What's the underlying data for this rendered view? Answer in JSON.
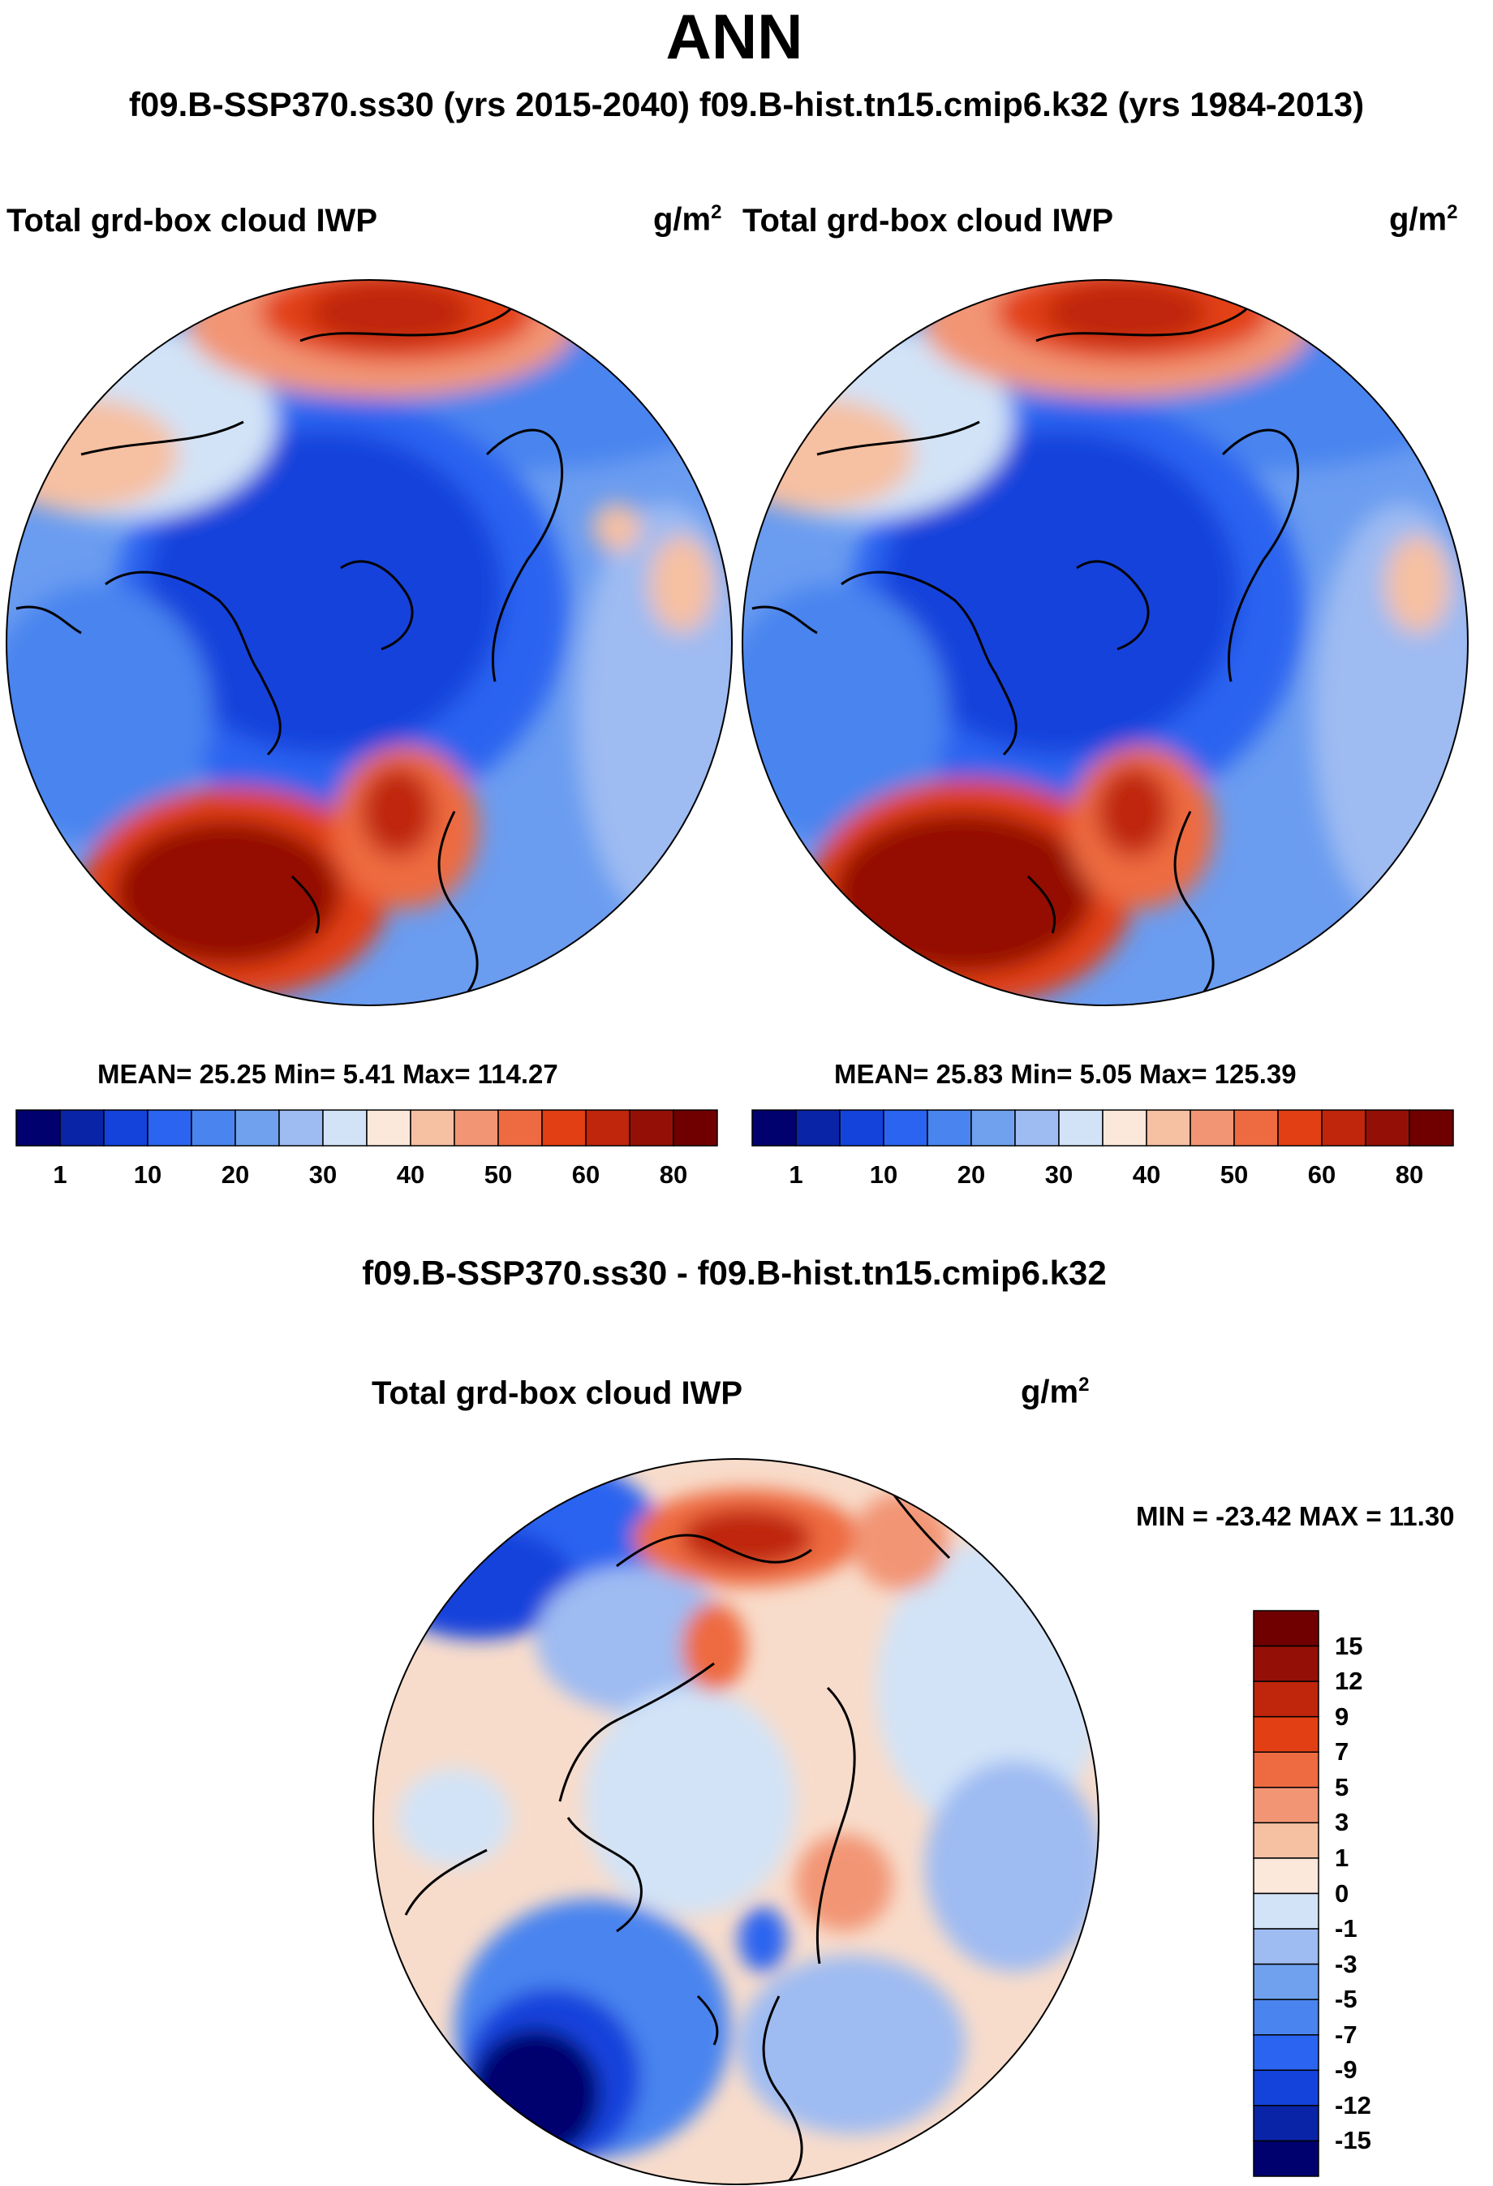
{
  "title": "ANN",
  "subtitle": "f09.B-SSP370.ss30 (yrs 2015-2040)  f09.B-hist.tn15.cmip6.k32 (yrs 1984-2013)",
  "panels": [
    {
      "variable": "Total grd-box cloud IWP",
      "units_base": "g/m",
      "units_exp": "2",
      "stats": "MEAN=  25.25  Min=   5.41  Max= 114.27"
    },
    {
      "variable": "Total grd-box cloud IWP",
      "units_base": "g/m",
      "units_exp": "2",
      "stats": "MEAN=  25.83  Min=   5.05  Max= 125.39"
    }
  ],
  "diff": {
    "title": "f09.B-SSP370.ss30 - f09.B-hist.tn15.cmip6.k32",
    "variable": "Total grd-box cloud IWP",
    "units_base": "g/m",
    "units_exp": "2",
    "stats": "MIN = -23.42 MAX =  11.30"
  },
  "chart_data": [
    {
      "type": "heatmap",
      "projection": "north-polar-stereographic",
      "title": "Total grd-box cloud IWP",
      "units": "g/m^2",
      "mean": 25.25,
      "min": 5.41,
      "max": 114.27,
      "colorbar_levels": [
        1,
        5,
        10,
        15,
        20,
        25,
        30,
        35,
        40,
        45,
        50,
        55,
        60,
        70,
        80
      ],
      "colorbar_tick_labels": [
        "1",
        "10",
        "20",
        "30",
        "40",
        "50",
        "60",
        "80"
      ],
      "colors": [
        "#00006e",
        "#0a24a8",
        "#1443dc",
        "#2a64f0",
        "#4a84ef",
        "#6fa1ee",
        "#9ebbf2",
        "#d2e3f7",
        "#fbe8da",
        "#f6c0a2",
        "#f29574",
        "#ee6a41",
        "#e23f14",
        "#bf260c",
        "#941006",
        "#700000"
      ]
    },
    {
      "type": "heatmap",
      "projection": "north-polar-stereographic",
      "title": "Total grd-box cloud IWP",
      "units": "g/m^2",
      "mean": 25.83,
      "min": 5.05,
      "max": 125.39,
      "colorbar_levels": [
        1,
        5,
        10,
        15,
        20,
        25,
        30,
        35,
        40,
        45,
        50,
        55,
        60,
        70,
        80
      ],
      "colorbar_tick_labels": [
        "1",
        "10",
        "20",
        "30",
        "40",
        "50",
        "60",
        "80"
      ],
      "colors": [
        "#00006e",
        "#0a24a8",
        "#1443dc",
        "#2a64f0",
        "#4a84ef",
        "#6fa1ee",
        "#9ebbf2",
        "#d2e3f7",
        "#fbe8da",
        "#f6c0a2",
        "#f29574",
        "#ee6a41",
        "#e23f14",
        "#bf260c",
        "#941006",
        "#700000"
      ]
    },
    {
      "type": "heatmap",
      "projection": "north-polar-stereographic",
      "title": "f09.B-SSP370.ss30 - f09.B-hist.tn15.cmip6.k32",
      "units": "g/m^2",
      "min": -23.42,
      "max": 11.3,
      "colorbar_levels": [
        -15,
        -12,
        -9,
        -7,
        -5,
        -3,
        -1,
        0,
        1,
        3,
        5,
        7,
        9,
        12,
        15
      ],
      "colorbar_tick_labels": [
        "15",
        "12",
        "9",
        "7",
        "5",
        "3",
        "1",
        "0",
        "-1",
        "-3",
        "-5",
        "-7",
        "-9",
        "-12",
        "-15"
      ],
      "colors": [
        "#00006e",
        "#0a24a8",
        "#1443dc",
        "#2a64f0",
        "#4a84ef",
        "#6fa1ee",
        "#9ebbf2",
        "#d2e3f7",
        "#fbe8da",
        "#f6c0a2",
        "#f29574",
        "#ee6a41",
        "#e23f14",
        "#bf260c",
        "#941006",
        "#700000"
      ]
    }
  ]
}
